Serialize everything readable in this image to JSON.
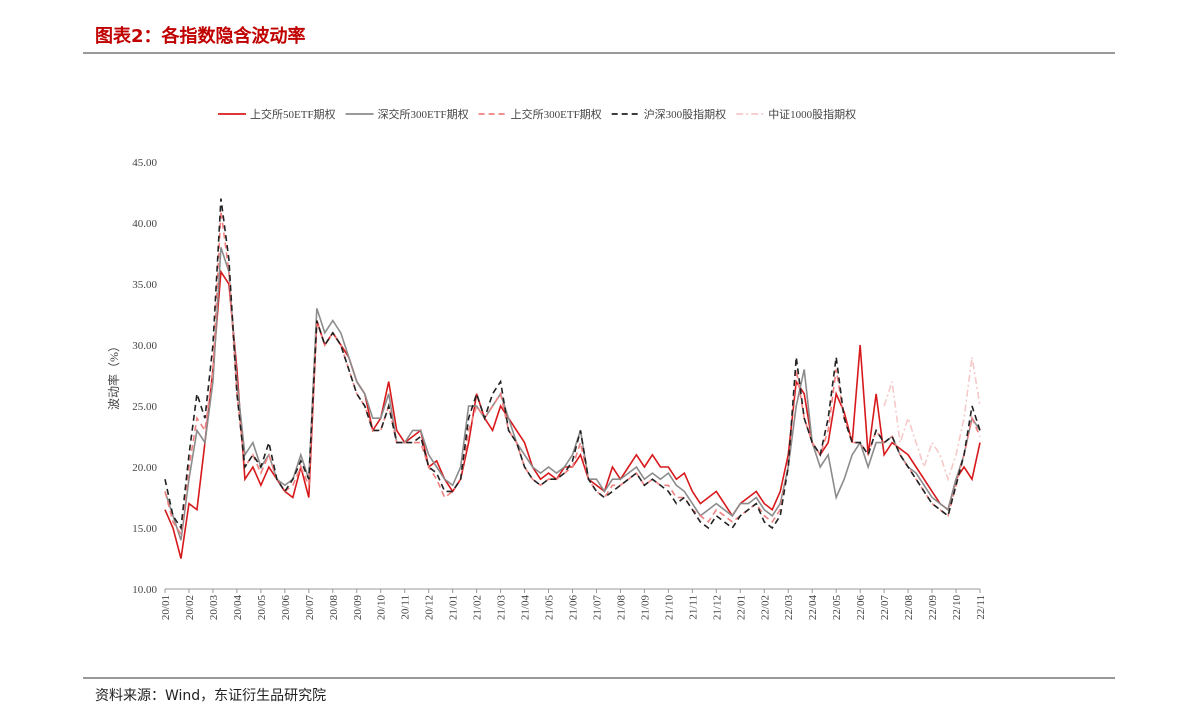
{
  "header": {
    "title": "图表2：各指数隐含波动率"
  },
  "footer": {
    "source": "资料来源：Wind，东证衍生品研究院"
  },
  "chart_data": {
    "type": "line",
    "y_label": "波动率（%）",
    "legend": "top",
    "grid": false,
    "ylim": [
      10,
      45
    ],
    "yticks": [
      {
        "value": 10,
        "label": "10.00"
      },
      {
        "value": 15,
        "label": "15.00"
      },
      {
        "value": 20,
        "label": "20.00"
      },
      {
        "value": 25,
        "label": "25.00"
      },
      {
        "value": 30,
        "label": "30.00"
      },
      {
        "value": 35,
        "label": "35.00"
      },
      {
        "value": 40,
        "label": "40.00"
      },
      {
        "value": 45,
        "label": "45.00"
      }
    ],
    "categories": [
      "20/01",
      null,
      null,
      "20/02",
      null,
      null,
      "20/03",
      null,
      null,
      "20/04",
      null,
      null,
      "20/05",
      null,
      null,
      "20/06",
      null,
      null,
      "20/07",
      null,
      null,
      "20/08",
      null,
      null,
      "20/09",
      null,
      null,
      "20/10",
      null,
      null,
      "20/11",
      null,
      null,
      "20/12",
      null,
      null,
      "21/01",
      null,
      null,
      "21/02",
      null,
      null,
      "21/03",
      null,
      null,
      "21/04",
      null,
      null,
      "21/05",
      null,
      null,
      "21/06",
      null,
      null,
      "21/07",
      null,
      null,
      "21/08",
      null,
      null,
      "21/09",
      null,
      null,
      "21/10",
      null,
      null,
      "21/11",
      null,
      null,
      "21/12",
      null,
      null,
      "22/01",
      null,
      null,
      "22/02",
      null,
      null,
      "22/03",
      null,
      null,
      "22/04",
      null,
      null,
      "22/05",
      null,
      null,
      "22/06",
      null,
      null,
      "22/07",
      null,
      null,
      "22/08",
      null,
      null,
      "22/09",
      null,
      null,
      "22/10",
      null,
      null,
      "22/11"
    ],
    "series": [
      {
        "name": "上交所50ETF期权",
        "color": "#d7191c",
        "style": "solid",
        "values": [
          16.5,
          15,
          12.5,
          17,
          16.5,
          22,
          28,
          36,
          35,
          28,
          19,
          20,
          18.5,
          20,
          19,
          18,
          17.5,
          20,
          17.5,
          32,
          30,
          31,
          30,
          29,
          27,
          26,
          23,
          24,
          27,
          23,
          22,
          22.5,
          23,
          20,
          20.5,
          19,
          18,
          19,
          22,
          26,
          24,
          23,
          25,
          24,
          23,
          22,
          20,
          19,
          19.5,
          19,
          20,
          20,
          21,
          19,
          18.5,
          18,
          20,
          19,
          20,
          21,
          20,
          21,
          20,
          20,
          19,
          19.5,
          18,
          17,
          17.5,
          18,
          17,
          16,
          17,
          17.5,
          18,
          17,
          16.5,
          18,
          21,
          27,
          26,
          22,
          21,
          22,
          26,
          24.5,
          22,
          30,
          21,
          26,
          21,
          22,
          21.5,
          21,
          20,
          19,
          18,
          17,
          16.5,
          19,
          20,
          19,
          22
        ]
      },
      {
        "name": "深交所300ETF期权",
        "color": "#8c8c8c",
        "style": "solid",
        "values": [
          18,
          16,
          14,
          19,
          23,
          22,
          27,
          38,
          36,
          27,
          21,
          22,
          20,
          21,
          19,
          18.5,
          19,
          21,
          19,
          33,
          31,
          32,
          31,
          29,
          27,
          26,
          24,
          24,
          26,
          22,
          22,
          23,
          23,
          21,
          20,
          19,
          18.5,
          20,
          25,
          25,
          24,
          25,
          26,
          24,
          22,
          21,
          20,
          19.5,
          20,
          19.5,
          20,
          21,
          23,
          19,
          19,
          18,
          19,
          19,
          19.5,
          20,
          19,
          19.5,
          19,
          19.5,
          18.5,
          18,
          17,
          16,
          16.5,
          17,
          16.5,
          16,
          17,
          17,
          17.5,
          16.5,
          16,
          17,
          20,
          25,
          28,
          22,
          20,
          21,
          17.5,
          19,
          21,
          22,
          20,
          22,
          22,
          22.5,
          21,
          20,
          19.5,
          18.5,
          17.5,
          17,
          16.5,
          19,
          21,
          24,
          23
        ]
      },
      {
        "name": "上交所300ETF期权",
        "color": "#f08080",
        "style": "dashed",
        "values": [
          18,
          15.5,
          14.5,
          20,
          24,
          23,
          28,
          41,
          36,
          26,
          20,
          21,
          19.5,
          21,
          19,
          18,
          18.5,
          20,
          18.5,
          32,
          30,
          31,
          30,
          28,
          26,
          25,
          23,
          23,
          25,
          22,
          22,
          22,
          22,
          20,
          19,
          17.5,
          18,
          19,
          23,
          25,
          24,
          25,
          26,
          23,
          22,
          20,
          19,
          18.5,
          19,
          19,
          19.5,
          20,
          22,
          19,
          18,
          17.5,
          18.5,
          18.5,
          19,
          19.5,
          18.5,
          19,
          18.5,
          18.5,
          17.5,
          17.5,
          16.5,
          16,
          15.5,
          16.5,
          16,
          15.5,
          16,
          16.5,
          17,
          16,
          15.5,
          16.5,
          20,
          28,
          24,
          22,
          21,
          23,
          28,
          24,
          22,
          22,
          21,
          23,
          22,
          22.5,
          21,
          20,
          19,
          18,
          17,
          16.5,
          16,
          18.5,
          21,
          24,
          22.5
        ]
      },
      {
        "name": "沪深300股指期权",
        "color": "#222222",
        "style": "dashed",
        "values": [
          19,
          16,
          15,
          21,
          26,
          24,
          30,
          42,
          37,
          26,
          20,
          21,
          20,
          22,
          19,
          18,
          19,
          20.5,
          19,
          32,
          30,
          31,
          30,
          28,
          26,
          25,
          23,
          23,
          25,
          22,
          22,
          22,
          22.5,
          20,
          19.5,
          18,
          18,
          19,
          24,
          26,
          24,
          26,
          27,
          23,
          22,
          20,
          19,
          18.5,
          19,
          19,
          19.5,
          20.5,
          23,
          19,
          18,
          17.5,
          18,
          18.5,
          19,
          19.5,
          18.5,
          19,
          18.5,
          18,
          17,
          17.5,
          16.5,
          15.5,
          15,
          16,
          15.5,
          15,
          16,
          16.5,
          17,
          15.5,
          15,
          16,
          20,
          29,
          24,
          22,
          21,
          24,
          29,
          24,
          22,
          22,
          21,
          23,
          22,
          22.5,
          21,
          20,
          19,
          18,
          17,
          16.5,
          16,
          18.5,
          21,
          25,
          23
        ]
      },
      {
        "name": "中证1000股指期权",
        "color": "#f6c9c9",
        "style": "dashdot",
        "values": [
          null,
          null,
          null,
          null,
          null,
          null,
          null,
          null,
          null,
          null,
          null,
          null,
          null,
          null,
          null,
          null,
          null,
          null,
          null,
          null,
          null,
          null,
          null,
          null,
          null,
          null,
          null,
          null,
          null,
          null,
          null,
          null,
          null,
          null,
          null,
          null,
          null,
          null,
          null,
          null,
          null,
          null,
          null,
          null,
          null,
          null,
          null,
          null,
          null,
          null,
          null,
          null,
          null,
          null,
          null,
          null,
          null,
          null,
          null,
          null,
          null,
          null,
          null,
          null,
          null,
          null,
          null,
          null,
          null,
          null,
          null,
          null,
          null,
          null,
          null,
          null,
          null,
          null,
          null,
          null,
          null,
          null,
          null,
          null,
          null,
          null,
          null,
          null,
          null,
          null,
          25,
          27,
          22,
          24,
          22,
          20,
          22,
          21,
          19,
          21,
          24,
          29,
          25
        ]
      }
    ]
  }
}
